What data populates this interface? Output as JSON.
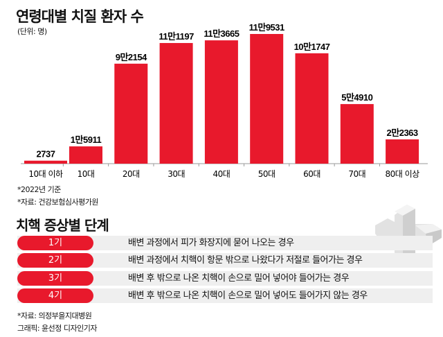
{
  "chart_data": {
    "type": "bar",
    "title": "연령대별 치질 환자 수",
    "unit_label": "(단위: 명)",
    "categories": [
      "10대 이하",
      "10대",
      "20대",
      "30대",
      "40대",
      "50대",
      "60대",
      "70대",
      "80대 이상"
    ],
    "values": [
      2737,
      15911,
      92154,
      111197,
      113665,
      119531,
      101747,
      54910,
      22363
    ],
    "data_labels": [
      "2737",
      "1만5911",
      "9만2154",
      "11만1197",
      "11만3665",
      "11만9531",
      "10만1747",
      "5만4910",
      "2만2363"
    ],
    "ylim": [
      0,
      119531
    ],
    "bar_color": "#e8192c",
    "notes": [
      "*2022년 기준",
      "*자료: 건강보험심사평가원"
    ]
  },
  "stages": {
    "title": "치핵 증상별 단계",
    "items": [
      {
        "label": "1기",
        "desc": "배변 과정에서 피가 화장지에 묻어 나오는 경우"
      },
      {
        "label": "2기",
        "desc": "배변 과정에서 치핵이 항문 밖으로 나왔다가 저절로 들어가는 경우"
      },
      {
        "label": "3기",
        "desc": "배변 후 밖으로 나온 치핵이 손으로 밀어 넣어야 들어가는 경우"
      },
      {
        "label": "4기",
        "desc": "배변 후 밖으로 나온 치핵이 손으로 밀어 넣어도 들어가지 않는 경우"
      }
    ]
  },
  "footer": {
    "source": "*자료: 의정부을지대병원",
    "credit": "그래픽: 윤선정 디자인기자"
  }
}
